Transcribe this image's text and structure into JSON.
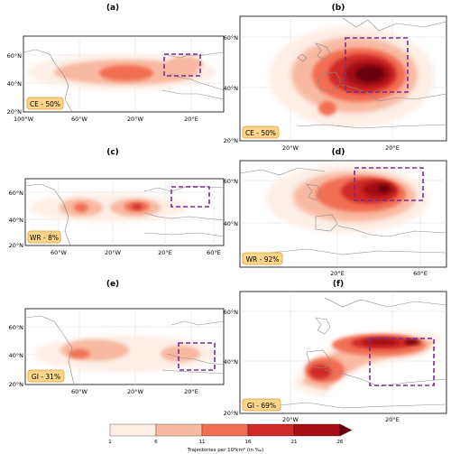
{
  "panels": [
    {
      "id": "a",
      "letter": "(a)",
      "badge": "CE - 50%",
      "x_ticks": [
        "100°W",
        "60°W",
        "20°W",
        "20°E"
      ],
      "y_ticks": [
        "60°N",
        "40°N",
        "20°N"
      ]
    },
    {
      "id": "b",
      "letter": "(b)",
      "badge": "CE - 50%",
      "x_ticks": [
        "20°W",
        "20°E"
      ],
      "y_ticks": [
        "60°N",
        "40°N",
        "20°N"
      ]
    },
    {
      "id": "c",
      "letter": "(c)",
      "badge": "WR - 8%",
      "x_ticks": [
        "60°W",
        "20°W",
        "20°E",
        "60°E"
      ],
      "y_ticks": [
        "60°N",
        "40°N",
        "20°N"
      ]
    },
    {
      "id": "d",
      "letter": "(d)",
      "badge": "WR - 92%",
      "x_ticks": [
        "20°E",
        "60°E"
      ],
      "y_ticks": [
        "60°N",
        "40°N"
      ]
    },
    {
      "id": "e",
      "letter": "(e)",
      "badge": "GI - 31%",
      "x_ticks": [
        "60°W",
        "20°W",
        "20°E"
      ],
      "y_ticks": [
        "60°N",
        "40°N",
        "20°N"
      ]
    },
    {
      "id": "f",
      "letter": "(f)",
      "badge": "GI - 69%",
      "x_ticks": [
        "20°W",
        "20°E"
      ],
      "y_ticks": [
        "60°N",
        "40°N",
        "20°N"
      ]
    }
  ],
  "colorbar": {
    "ticks": [
      "1",
      "6",
      "11",
      "16",
      "21",
      "26"
    ],
    "label": "Trajectories per 10⁵km² (in ‰)",
    "colors": [
      "#fdeee6",
      "#f8b9a2",
      "#f26e53",
      "#cf2a27",
      "#a50f15",
      "#67000d"
    ]
  },
  "colors": {
    "box": "#7b2a8f",
    "badge_fill": "#fcd68a",
    "badge_stroke": "#e39b2f",
    "land": "#8a8a8a"
  }
}
